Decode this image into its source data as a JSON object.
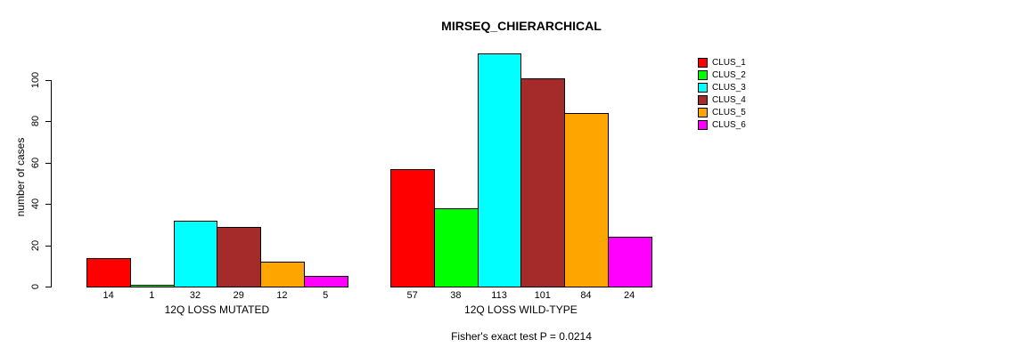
{
  "title": "MIRSEQ_CHIERARCHICAL",
  "ylabel": "number of cases",
  "annotation": "Fisher's exact test P = 0.0214",
  "chart_data": {
    "type": "bar",
    "categories": [
      "12Q LOSS MUTATED",
      "12Q LOSS WILD-TYPE"
    ],
    "series": [
      {
        "name": "CLUS_1",
        "color": "#FF0000",
        "values": [
          14,
          57
        ]
      },
      {
        "name": "CLUS_2",
        "color": "#00FF00",
        "values": [
          1,
          38
        ]
      },
      {
        "name": "CLUS_3",
        "color": "#00FFFF",
        "values": [
          32,
          113
        ]
      },
      {
        "name": "CLUS_4",
        "color": "#A52A2A",
        "values": [
          29,
          101
        ]
      },
      {
        "name": "CLUS_5",
        "color": "#FFA500",
        "values": [
          12,
          84
        ]
      },
      {
        "name": "CLUS_6",
        "color": "#FF00FF",
        "values": [
          5,
          24
        ]
      }
    ],
    "yticks": [
      0,
      20,
      40,
      60,
      80,
      100
    ],
    "ylim": [
      0,
      113
    ],
    "bar_value_labels": true,
    "grid": false,
    "legend_position": "right",
    "axis_color": "#000000",
    "bar_border_color": "#000000"
  }
}
